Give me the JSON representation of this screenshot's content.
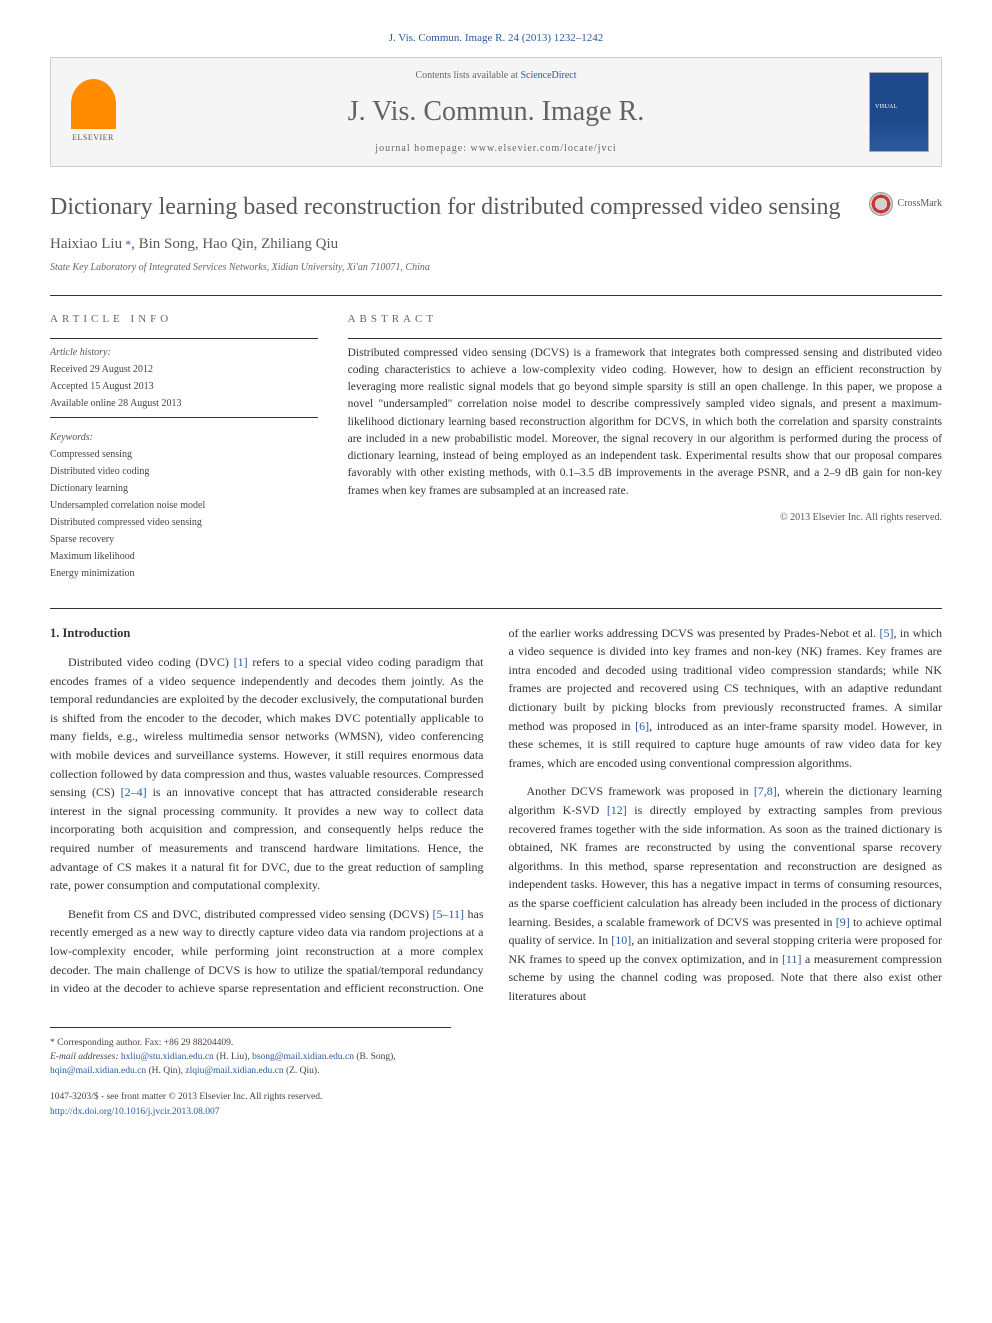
{
  "citation": "J. Vis. Commun. Image R. 24 (2013) 1232–1242",
  "header": {
    "contents_prefix": "Contents lists available at ",
    "contents_link": "ScienceDirect",
    "journal_name": "J. Vis. Commun. Image R.",
    "homepage_prefix": "journal homepage: ",
    "homepage_url": "www.elsevier.com/locate/jvci",
    "publisher": "ELSEVIER"
  },
  "crossmark_label": "CrossMark",
  "title": "Dictionary learning based reconstruction for distributed compressed video sensing",
  "authors": {
    "a1": "Haixiao Liu",
    "a2": "Bin Song",
    "a3": "Hao Qin",
    "a4": "Zhiliang Qiu",
    "corr_mark": " *"
  },
  "affiliation": "State Key Laboratory of Integrated Services Networks, Xidian University, Xi'an 710071, China",
  "info": {
    "heading": "ARTICLE INFO",
    "history_label": "Article history:",
    "received": "Received 29 August 2012",
    "accepted": "Accepted 15 August 2013",
    "online": "Available online 28 August 2013",
    "keywords_label": "Keywords:",
    "kw1": "Compressed sensing",
    "kw2": "Distributed video coding",
    "kw3": "Dictionary learning",
    "kw4": "Undersampled correlation noise model",
    "kw5": "Distributed compressed video sensing",
    "kw6": "Sparse recovery",
    "kw7": "Maximum likelihood",
    "kw8": "Energy minimization"
  },
  "abstract": {
    "heading": "ABSTRACT",
    "text": "Distributed compressed video sensing (DCVS) is a framework that integrates both compressed sensing and distributed video coding characteristics to achieve a low-complexity video coding. However, how to design an efficient reconstruction by leveraging more realistic signal models that go beyond simple sparsity is still an open challenge. In this paper, we propose a novel \"undersampled\" correlation noise model to describe compressively sampled video signals, and present a maximum-likelihood dictionary learning based reconstruction algorithm for DCVS, in which both the correlation and sparsity constraints are included in a new probabilistic model. Moreover, the signal recovery in our algorithm is performed during the process of dictionary learning, instead of being employed as an independent task. Experimental results show that our proposal compares favorably with other existing methods, with 0.1–3.5 dB improvements in the average PSNR, and a 2–9 dB gain for non-key frames when key frames are subsampled at an increased rate.",
    "copyright": "© 2013 Elsevier Inc. All rights reserved."
  },
  "body": {
    "sec1_heading": "1. Introduction",
    "p1a": "Distributed video coding (DVC) ",
    "p1_ref1": "[1]",
    "p1b": " refers to a special video coding paradigm that encodes frames of a video sequence independently and decodes them jointly. As the temporal redundancies are exploited by the decoder exclusively, the computational burden is shifted from the encoder to the decoder, which makes DVC potentially applicable to many fields, e.g., wireless multimedia sensor networks (WMSN), video conferencing with mobile devices and surveillance systems. However, it still requires enormous data collection followed by data compression and thus, wastes valuable resources. Compressed sensing (CS) ",
    "p1_ref2": "[2–4]",
    "p1c": " is an innovative concept that has attracted considerable research interest in the signal processing community. It provides a new way to collect data incorporating both acquisition and compression, and consequently helps reduce the required number of measurements and transcend hardware limitations. Hence, the advantage of CS makes it a natural fit for DVC, due to the great reduction of sampling rate, power consumption and computational complexity.",
    "p2a": "Benefit from CS and DVC, distributed compressed video sensing (DCVS) ",
    "p2_ref1": "[5–11]",
    "p2b": " has recently emerged as a new way to directly capture video data via random projections at a low-complexity encoder, while performing joint reconstruction at a more complex decoder. The main challenge of DCVS is how to utilize the spatial/temporal redundancy in video at the decoder to achieve sparse representation and efficient reconstruction. One of the earlier works addressing DCVS was presented by Prades-Nebot et al. ",
    "p2_ref2": "[5]",
    "p2c": ", in which a video sequence is divided into key frames and non-key (NK) frames. Key frames are intra encoded and decoded using traditional video compression standards; while NK frames are projected and recovered using CS techniques, with an adaptive redundant dictionary built by picking blocks from previously reconstructed frames. A similar method was proposed in ",
    "p2_ref3": "[6]",
    "p2d": ", introduced as an inter-frame sparsity model. However, in these schemes, it is still required to capture huge amounts of raw video data for key frames, which are encoded using conventional compression algorithms.",
    "p3a": "Another DCVS framework was proposed in ",
    "p3_ref1": "[7,8]",
    "p3b": ", wherein the dictionary learning algorithm K-SVD ",
    "p3_ref2": "[12]",
    "p3c": " is directly employed by extracting samples from previous recovered frames together with the side information. As soon as the trained dictionary is obtained, NK frames are reconstructed by using the conventional sparse recovery algorithms. In this method, sparse representation and reconstruction are designed as independent tasks. However, this has a negative impact in terms of consuming resources, as the sparse coefficient calculation has already been included in the process of dictionary learning. Besides, a scalable framework of DCVS was presented in ",
    "p3_ref3": "[9]",
    "p3d": " to achieve optimal quality of service. In ",
    "p3_ref4": "[10]",
    "p3e": ", an initialization and several stopping criteria were proposed for NK frames to speed up the convex optimization, and in ",
    "p3_ref5": "[11]",
    "p3f": " a measurement compression scheme by using the channel coding was proposed. Note that there also exist other literatures about"
  },
  "footer": {
    "corr_label": "* Corresponding author. Fax: +86 29 88204409.",
    "email_label": "E-mail addresses: ",
    "e1": "hxliu@stu.xidian.edu.cn",
    "e1_who": " (H. Liu), ",
    "e2": "bsong@mail.xidian.edu.cn",
    "e2_who": " (B. Song), ",
    "e3": "hqin@mail.xidian.edu.cn",
    "e3_who": " (H. Qin), ",
    "e4": "zlqiu@mail.xidian.edu.cn",
    "e4_who": " (Z. Qiu).",
    "issn_line": "1047-3203/$ - see front matter © 2013 Elsevier Inc. All rights reserved.",
    "doi_url": "http://dx.doi.org/10.1016/j.jvcir.2013.08.007"
  },
  "colors": {
    "link": "#2a5a9e",
    "text": "#333333",
    "heading_gray": "#5a5a5a",
    "border": "#cccccc",
    "elsevier_orange": "#ff8c00"
  }
}
